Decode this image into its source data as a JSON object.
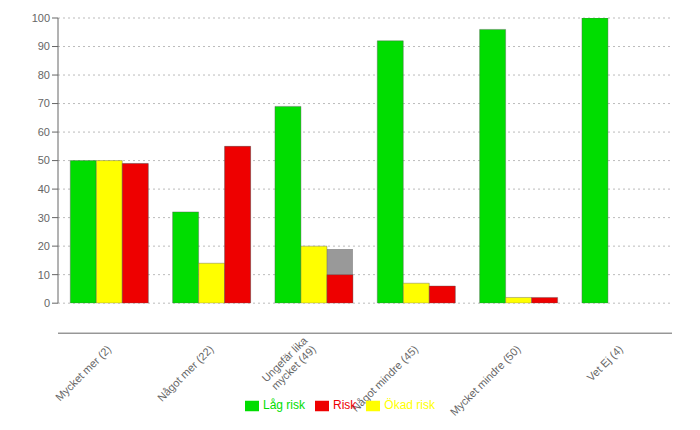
{
  "chart_data": {
    "type": "bar",
    "categories": [
      "Mycket mer (2)",
      "Något mer (22)",
      "Ungefär lika\nmycket (49)",
      "Något mindre (45)",
      "Mycket mindre (50)",
      "Vet Ej (4)"
    ],
    "series": [
      {
        "name": "Låg risk",
        "color": "#00dd00",
        "values": [
          50,
          32,
          69,
          92,
          96,
          100
        ]
      },
      {
        "name": "Ökad risk",
        "color": "#ffff00",
        "values": [
          50,
          14,
          20,
          7,
          2,
          0
        ]
      },
      {
        "name": "Risk",
        "color": "#ee0000",
        "values": [
          49,
          55,
          10,
          6,
          2,
          0
        ]
      },
      {
        "color": "#999999",
        "values": [
          49,
          12,
          19,
          6,
          0,
          0
        ]
      },
      {
        "color": "#999999",
        "values": [
          49,
          55,
          19,
          6,
          0,
          0
        ]
      }
    ],
    "ylim": [
      0,
      100
    ],
    "yticks": [
      0,
      10,
      20,
      30,
      40,
      50,
      60,
      70,
      80,
      90,
      100
    ],
    "grid": true,
    "legend": "bottom"
  }
}
